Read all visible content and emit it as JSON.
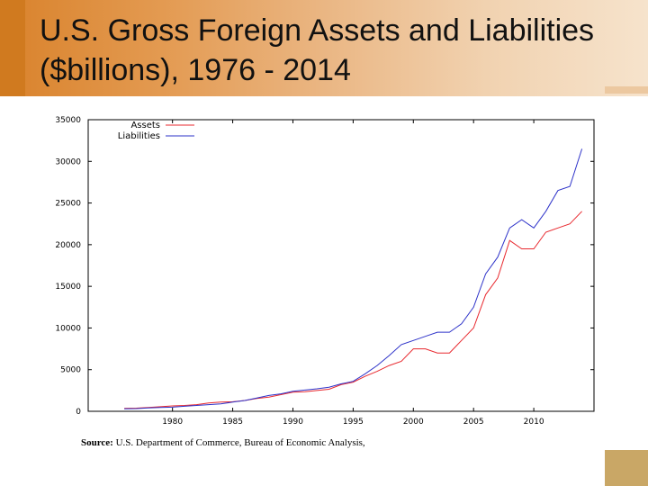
{
  "slide": {
    "title_line1": "U.S. Gross Foreign Assets and Liabilities",
    "title_line2": "($billions), 1976 - 2014",
    "source_label": "Source:",
    "source_text": " U.S. Department of Commerce, Bureau of Economic Analysis,"
  },
  "colors": {
    "assets": "#e8292f",
    "liabilities": "#2e33c9",
    "title_band_start": "#d9822b",
    "corner_box": "#c9a766"
  },
  "chart_data": {
    "type": "line",
    "title": "",
    "xlabel": "",
    "ylabel": "",
    "xlim": [
      1973,
      2015
    ],
    "ylim": [
      0,
      35000
    ],
    "x_ticks": [
      1980,
      1985,
      1990,
      1995,
      2000,
      2005,
      2010
    ],
    "y_ticks": [
      0,
      5000,
      10000,
      15000,
      20000,
      25000,
      30000,
      35000
    ],
    "legend_position": "top-left",
    "grid": false,
    "x": [
      1976,
      1977,
      1978,
      1979,
      1980,
      1981,
      1982,
      1983,
      1984,
      1985,
      1986,
      1987,
      1988,
      1989,
      1990,
      1991,
      1992,
      1993,
      1994,
      1995,
      1996,
      1997,
      1998,
      1999,
      2000,
      2001,
      2002,
      2003,
      2004,
      2005,
      2006,
      2007,
      2008,
      2009,
      2010,
      2011,
      2012,
      2013,
      2014
    ],
    "series": [
      {
        "name": "Assets",
        "color": "#e8292f",
        "values": [
          350,
          380,
          450,
          550,
          650,
          700,
          800,
          1000,
          1100,
          1150,
          1300,
          1550,
          1700,
          2000,
          2300,
          2350,
          2500,
          2650,
          3200,
          3500,
          4200,
          4800,
          5500,
          6000,
          7500,
          7500,
          7000,
          7000,
          8500,
          10000,
          14000,
          16000,
          20500,
          19500,
          19500,
          21500,
          22000,
          22500,
          24000
        ]
      },
      {
        "name": "Liabilities",
        "color": "#2e33c9",
        "values": [
          300,
          320,
          400,
          450,
          500,
          600,
          700,
          800,
          900,
          1100,
          1300,
          1600,
          1900,
          2100,
          2400,
          2550,
          2700,
          2900,
          3300,
          3600,
          4500,
          5500,
          6700,
          8000,
          8500,
          9000,
          9500,
          9500,
          10500,
          12500,
          16500,
          18500,
          22000,
          23000,
          22000,
          24000,
          26500,
          27000,
          31500
        ]
      }
    ]
  }
}
